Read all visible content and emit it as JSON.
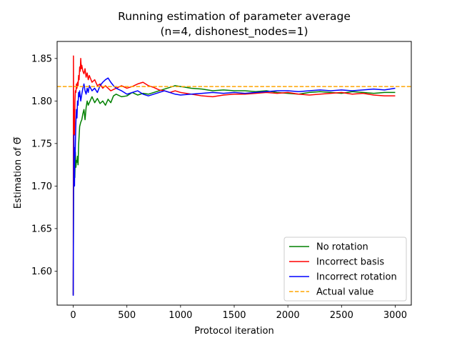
{
  "chart_data": {
    "type": "line",
    "title": "Running estimation of parameter average",
    "subtitle": "(n=4, dishonest_nodes=1)",
    "xlabel": "Protocol iteration",
    "ylabel": "Estimation of Θ̅",
    "xlim": [
      -150,
      3150
    ],
    "ylim": [
      1.56,
      1.87
    ],
    "xticks": [
      0,
      500,
      1000,
      1500,
      2000,
      2500,
      3000
    ],
    "xtick_labels": [
      "0",
      "500",
      "1000",
      "1500",
      "2000",
      "2500",
      "3000"
    ],
    "yticks": [
      1.6,
      1.65,
      1.7,
      1.75,
      1.8,
      1.85
    ],
    "ytick_labels": [
      "1.60",
      "1.65",
      "1.70",
      "1.75",
      "1.80",
      "1.85"
    ],
    "grid": false,
    "legend_position": "lower right",
    "series": [
      {
        "name": "No rotation",
        "color": "#008000",
        "style": "solid",
        "points": [
          [
            0,
            1.572
          ],
          [
            5,
            1.745
          ],
          [
            10,
            1.73
          ],
          [
            15,
            1.71
          ],
          [
            20,
            1.74
          ],
          [
            25,
            1.722
          ],
          [
            30,
            1.73
          ],
          [
            35,
            1.728
          ],
          [
            40,
            1.735
          ],
          [
            45,
            1.725
          ],
          [
            50,
            1.748
          ],
          [
            60,
            1.77
          ],
          [
            70,
            1.775
          ],
          [
            80,
            1.778
          ],
          [
            90,
            1.785
          ],
          [
            100,
            1.79
          ],
          [
            110,
            1.778
          ],
          [
            120,
            1.792
          ],
          [
            130,
            1.8
          ],
          [
            140,
            1.795
          ],
          [
            150,
            1.798
          ],
          [
            175,
            1.805
          ],
          [
            200,
            1.798
          ],
          [
            225,
            1.803
          ],
          [
            250,
            1.797
          ],
          [
            275,
            1.8
          ],
          [
            300,
            1.795
          ],
          [
            325,
            1.802
          ],
          [
            350,
            1.798
          ],
          [
            375,
            1.806
          ],
          [
            400,
            1.808
          ],
          [
            450,
            1.805
          ],
          [
            500,
            1.806
          ],
          [
            550,
            1.81
          ],
          [
            600,
            1.807
          ],
          [
            650,
            1.809
          ],
          [
            700,
            1.808
          ],
          [
            750,
            1.81
          ],
          [
            800,
            1.812
          ],
          [
            850,
            1.814
          ],
          [
            900,
            1.816
          ],
          [
            950,
            1.818
          ],
          [
            1000,
            1.817
          ],
          [
            1050,
            1.816
          ],
          [
            1100,
            1.815
          ],
          [
            1200,
            1.814
          ],
          [
            1300,
            1.812
          ],
          [
            1400,
            1.813
          ],
          [
            1500,
            1.812
          ],
          [
            1600,
            1.812
          ],
          [
            1700,
            1.811
          ],
          [
            1800,
            1.812
          ],
          [
            1900,
            1.81
          ],
          [
            2000,
            1.809
          ],
          [
            2100,
            1.808
          ],
          [
            2200,
            1.81
          ],
          [
            2300,
            1.811
          ],
          [
            2400,
            1.81
          ],
          [
            2500,
            1.809
          ],
          [
            2600,
            1.811
          ],
          [
            2700,
            1.81
          ],
          [
            2800,
            1.809
          ],
          [
            2900,
            1.81
          ],
          [
            3000,
            1.81
          ]
        ]
      },
      {
        "name": "Incorrect basis",
        "color": "#ff0000",
        "style": "solid",
        "points": [
          [
            0,
            1.572
          ],
          [
            2,
            1.853
          ],
          [
            5,
            1.75
          ],
          [
            8,
            1.79
          ],
          [
            12,
            1.76
          ],
          [
            16,
            1.8
          ],
          [
            20,
            1.812
          ],
          [
            25,
            1.81
          ],
          [
            30,
            1.82
          ],
          [
            35,
            1.815
          ],
          [
            40,
            1.822
          ],
          [
            45,
            1.818
          ],
          [
            50,
            1.83
          ],
          [
            55,
            1.825
          ],
          [
            60,
            1.84
          ],
          [
            65,
            1.835
          ],
          [
            70,
            1.85
          ],
          [
            75,
            1.838
          ],
          [
            80,
            1.842
          ],
          [
            90,
            1.835
          ],
          [
            100,
            1.832
          ],
          [
            110,
            1.838
          ],
          [
            120,
            1.828
          ],
          [
            130,
            1.833
          ],
          [
            140,
            1.825
          ],
          [
            150,
            1.83
          ],
          [
            175,
            1.822
          ],
          [
            200,
            1.825
          ],
          [
            225,
            1.818
          ],
          [
            250,
            1.82
          ],
          [
            275,
            1.815
          ],
          [
            300,
            1.818
          ],
          [
            350,
            1.812
          ],
          [
            400,
            1.815
          ],
          [
            450,
            1.818
          ],
          [
            500,
            1.815
          ],
          [
            550,
            1.817
          ],
          [
            600,
            1.82
          ],
          [
            650,
            1.822
          ],
          [
            700,
            1.818
          ],
          [
            750,
            1.816
          ],
          [
            800,
            1.813
          ],
          [
            850,
            1.812
          ],
          [
            900,
            1.81
          ],
          [
            950,
            1.812
          ],
          [
            1000,
            1.81
          ],
          [
            1100,
            1.808
          ],
          [
            1200,
            1.806
          ],
          [
            1300,
            1.805
          ],
          [
            1400,
            1.807
          ],
          [
            1500,
            1.808
          ],
          [
            1600,
            1.808
          ],
          [
            1700,
            1.809
          ],
          [
            1800,
            1.81
          ],
          [
            1900,
            1.809
          ],
          [
            2000,
            1.81
          ],
          [
            2100,
            1.808
          ],
          [
            2200,
            1.807
          ],
          [
            2300,
            1.808
          ],
          [
            2400,
            1.809
          ],
          [
            2500,
            1.81
          ],
          [
            2600,
            1.808
          ],
          [
            2700,
            1.809
          ],
          [
            2800,
            1.807
          ],
          [
            2900,
            1.806
          ],
          [
            3000,
            1.806
          ]
        ]
      },
      {
        "name": "Incorrect rotation",
        "color": "#0000ff",
        "style": "solid",
        "points": [
          [
            0,
            1.571
          ],
          [
            3,
            1.695
          ],
          [
            6,
            1.76
          ],
          [
            9,
            1.72
          ],
          [
            12,
            1.7
          ],
          [
            15,
            1.745
          ],
          [
            18,
            1.735
          ],
          [
            22,
            1.76
          ],
          [
            25,
            1.775
          ],
          [
            30,
            1.79
          ],
          [
            35,
            1.78
          ],
          [
            40,
            1.8
          ],
          [
            45,
            1.795
          ],
          [
            50,
            1.81
          ],
          [
            55,
            1.805
          ],
          [
            60,
            1.812
          ],
          [
            70,
            1.8
          ],
          [
            80,
            1.808
          ],
          [
            90,
            1.815
          ],
          [
            100,
            1.82
          ],
          [
            110,
            1.812
          ],
          [
            120,
            1.808
          ],
          [
            130,
            1.815
          ],
          [
            140,
            1.81
          ],
          [
            150,
            1.818
          ],
          [
            175,
            1.812
          ],
          [
            200,
            1.815
          ],
          [
            225,
            1.81
          ],
          [
            250,
            1.818
          ],
          [
            275,
            1.822
          ],
          [
            300,
            1.825
          ],
          [
            325,
            1.827
          ],
          [
            350,
            1.822
          ],
          [
            375,
            1.818
          ],
          [
            400,
            1.815
          ],
          [
            450,
            1.812
          ],
          [
            500,
            1.808
          ],
          [
            550,
            1.81
          ],
          [
            600,
            1.812
          ],
          [
            650,
            1.808
          ],
          [
            700,
            1.806
          ],
          [
            750,
            1.808
          ],
          [
            800,
            1.81
          ],
          [
            850,
            1.812
          ],
          [
            900,
            1.81
          ],
          [
            950,
            1.808
          ],
          [
            1000,
            1.807
          ],
          [
            1100,
            1.808
          ],
          [
            1200,
            1.809
          ],
          [
            1300,
            1.81
          ],
          [
            1400,
            1.809
          ],
          [
            1500,
            1.81
          ],
          [
            1600,
            1.809
          ],
          [
            1700,
            1.81
          ],
          [
            1800,
            1.811
          ],
          [
            1900,
            1.812
          ],
          [
            2000,
            1.812
          ],
          [
            2100,
            1.811
          ],
          [
            2200,
            1.812
          ],
          [
            2300,
            1.813
          ],
          [
            2400,
            1.812
          ],
          [
            2500,
            1.813
          ],
          [
            2600,
            1.812
          ],
          [
            2700,
            1.813
          ],
          [
            2800,
            1.814
          ],
          [
            2900,
            1.813
          ],
          [
            3000,
            1.815
          ]
        ]
      },
      {
        "name": "Actual value",
        "color": "#ffa500",
        "style": "dashed",
        "points": [
          [
            -150,
            1.817
          ],
          [
            3150,
            1.817
          ]
        ]
      }
    ]
  }
}
